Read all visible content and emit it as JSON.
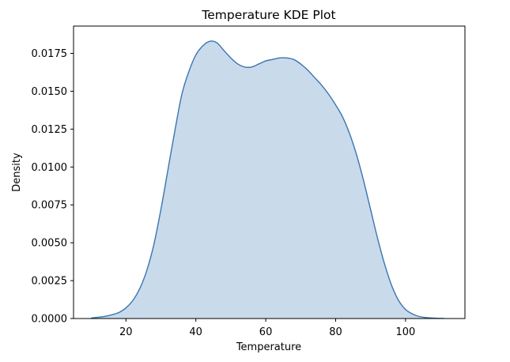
{
  "chart_data": {
    "type": "area",
    "title": "Temperature KDE Plot",
    "xlabel": "Temperature",
    "ylabel": "Density",
    "xlim": [
      5,
      117
    ],
    "ylim": [
      0,
      0.0193
    ],
    "xticks": [
      20,
      40,
      60,
      80,
      100
    ],
    "xtick_labels": [
      "20",
      "40",
      "60",
      "80",
      "100"
    ],
    "yticks": [
      0,
      0.0025,
      0.005,
      0.0075,
      0.01,
      0.0125,
      0.015,
      0.0175
    ],
    "ytick_labels": [
      "0.0000",
      "0.0025",
      "0.0050",
      "0.0075",
      "0.0100",
      "0.0125",
      "0.0150",
      "0.0175"
    ],
    "grid": false,
    "colors": {
      "line": "#3a75b0",
      "fill": "#c9daeb"
    },
    "series": [
      {
        "x": [
          10,
          12,
          14,
          16,
          18,
          20,
          22,
          24,
          26,
          28,
          30,
          32,
          34,
          36,
          38,
          40,
          42,
          44,
          46,
          48,
          50,
          52,
          54,
          56,
          58,
          60,
          62,
          64,
          66,
          68,
          70,
          72,
          74,
          76,
          78,
          80,
          82,
          84,
          86,
          88,
          90,
          92,
          94,
          96,
          98,
          100,
          102,
          104,
          106,
          108,
          110,
          111
        ],
        "y": [
          3e-05,
          8e-05,
          0.00014,
          0.00025,
          0.0004,
          0.0007,
          0.0012,
          0.002,
          0.0032,
          0.0049,
          0.0072,
          0.0098,
          0.0124,
          0.0148,
          0.0163,
          0.0174,
          0.018,
          0.0183,
          0.0182,
          0.0177,
          0.0172,
          0.0168,
          0.0166,
          0.0166,
          0.0168,
          0.017,
          0.0171,
          0.0172,
          0.0172,
          0.0171,
          0.0168,
          0.0164,
          0.0159,
          0.0154,
          0.0148,
          0.0141,
          0.0133,
          0.0122,
          0.0108,
          0.0091,
          0.0072,
          0.0053,
          0.0036,
          0.0022,
          0.0012,
          0.0006,
          0.0003,
          0.00013,
          6e-05,
          3e-05,
          1e-05,
          1e-05
        ]
      }
    ]
  }
}
